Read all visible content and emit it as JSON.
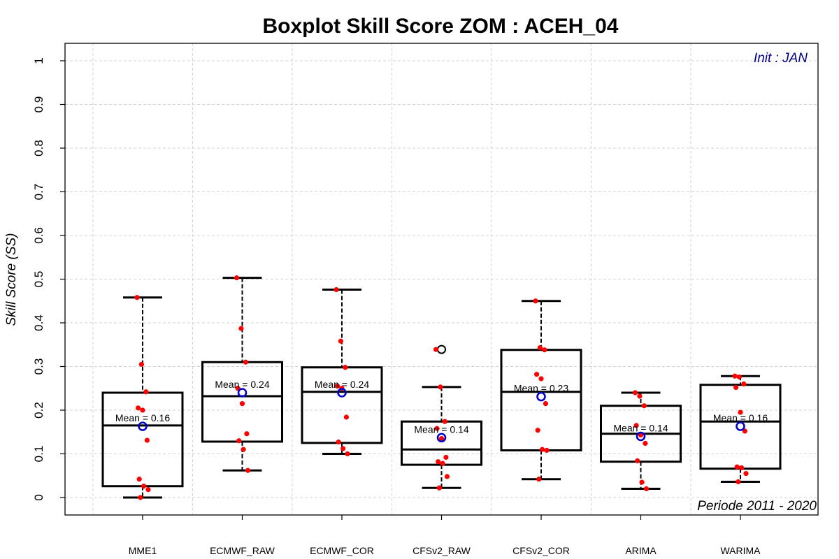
{
  "chart_data": {
    "type": "boxplot",
    "title": "Boxplot Skill Score ZOM : ACEH_04",
    "ylabel": "Skill Score (SS)",
    "xlabel": "",
    "ylim": [
      -0.04,
      1.04
    ],
    "yticks": [
      0,
      0.1,
      0.2,
      0.3,
      0.4,
      0.5,
      0.6,
      0.7,
      0.8,
      0.9,
      1
    ],
    "ytick_labels": [
      "0",
      "0.1",
      "0.2",
      "0.3",
      "0.4",
      "0.5",
      "0.6",
      "0.7",
      "0.8",
      "0.9",
      "1"
    ],
    "grid": true,
    "init_annotation": "Init : JAN",
    "period_annotation": "Periode 2011 - 2020",
    "categories": [
      "MME1",
      "ECMWF_RAW",
      "ECMWF_COR",
      "CFSv2_RAW",
      "CFSv2_COR",
      "ARIMA",
      "WARIMA"
    ],
    "boxes": [
      {
        "name": "MME1",
        "whisker_low": 0.0,
        "q1": 0.026,
        "median": 0.165,
        "q3": 0.24,
        "whisker_high": 0.458,
        "mean": 0.163,
        "mean_label": "Mean = 0.16",
        "outliers": [],
        "points": [
          0.458,
          0.305,
          0.242,
          0.205,
          0.2,
          0.131,
          0.042,
          0.026,
          0.018,
          0.0
        ]
      },
      {
        "name": "ECMWF_RAW",
        "whisker_low": 0.062,
        "q1": 0.128,
        "median": 0.232,
        "q3": 0.31,
        "whisker_high": 0.503,
        "mean": 0.24,
        "mean_label": "Mean = 0.24",
        "outliers": [],
        "points": [
          0.503,
          0.387,
          0.31,
          0.25,
          0.215,
          0.146,
          0.13,
          0.11,
          0.062
        ]
      },
      {
        "name": "ECMWF_COR",
        "whisker_low": 0.1,
        "q1": 0.125,
        "median": 0.242,
        "q3": 0.298,
        "whisker_high": 0.476,
        "mean": 0.24,
        "mean_label": "Mean = 0.24",
        "outliers": [],
        "points": [
          0.476,
          0.358,
          0.298,
          0.255,
          0.25,
          0.184,
          0.127,
          0.112,
          0.1
        ]
      },
      {
        "name": "CFSv2_RAW",
        "whisker_low": 0.022,
        "q1": 0.075,
        "median": 0.11,
        "q3": 0.174,
        "whisker_high": 0.253,
        "mean": 0.137,
        "mean_label": "Mean = 0.14",
        "outliers": [
          0.339
        ],
        "points": [
          0.339,
          0.253,
          0.174,
          0.158,
          0.135,
          0.092,
          0.082,
          0.078,
          0.048,
          0.022
        ]
      },
      {
        "name": "CFSv2_COR",
        "whisker_low": 0.042,
        "q1": 0.108,
        "median": 0.242,
        "q3": 0.338,
        "whisker_high": 0.45,
        "mean": 0.231,
        "mean_label": "Mean = 0.23",
        "outliers": [],
        "points": [
          0.45,
          0.343,
          0.338,
          0.282,
          0.272,
          0.215,
          0.154,
          0.11,
          0.108,
          0.042
        ]
      },
      {
        "name": "ARIMA",
        "whisker_low": 0.02,
        "q1": 0.082,
        "median": 0.146,
        "q3": 0.21,
        "whisker_high": 0.24,
        "mean": 0.14,
        "mean_label": "Mean = 0.14",
        "outliers": [],
        "points": [
          0.24,
          0.232,
          0.21,
          0.165,
          0.143,
          0.124,
          0.084,
          0.035,
          0.02
        ]
      },
      {
        "name": "WARIMA",
        "whisker_low": 0.036,
        "q1": 0.066,
        "median": 0.174,
        "q3": 0.258,
        "whisker_high": 0.278,
        "mean": 0.163,
        "mean_label": "Mean = 0.16",
        "outliers": [],
        "points": [
          0.278,
          0.276,
          0.26,
          0.252,
          0.195,
          0.152,
          0.07,
          0.068,
          0.055,
          0.036
        ]
      }
    ],
    "colors": {
      "box": "#000000",
      "points": "#ff0000",
      "mean_marker": "#0000cd",
      "grid": "#d3d3d3",
      "init_text": "#00008b"
    }
  }
}
